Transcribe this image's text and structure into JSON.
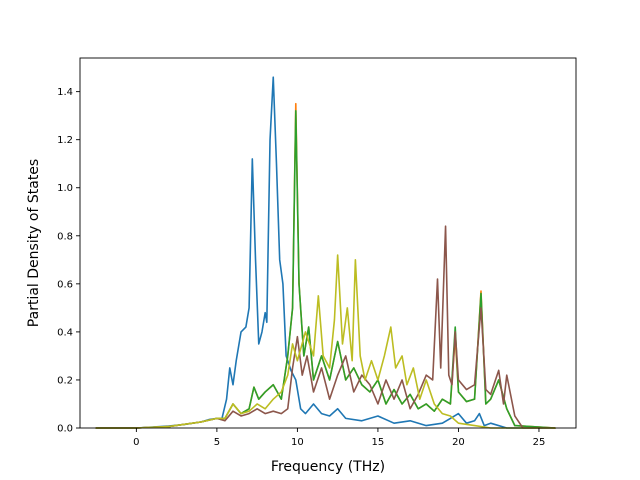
{
  "chart_data": {
    "type": "line",
    "title": "",
    "xlabel": "Frequency (THz)",
    "ylabel": "Partial Density of States",
    "xlim": [
      -3.5,
      27.3
    ],
    "ylim": [
      0,
      1.54
    ],
    "xticks": [
      0,
      5,
      10,
      15,
      20,
      25
    ],
    "yticks": [
      0.0,
      0.2,
      0.4,
      0.6,
      0.8,
      1.0,
      1.2,
      1.4
    ],
    "xtick_labels": [
      "0",
      "5",
      "10",
      "15",
      "20",
      "25"
    ],
    "ytick_labels": [
      "0.0",
      "0.2",
      "0.4",
      "0.6",
      "0.8",
      "1.0",
      "1.2",
      "1.4"
    ],
    "grid": false,
    "legend": "none",
    "series": [
      {
        "color": "#1f77b4",
        "points": [
          [
            -2.5,
            0
          ],
          [
            0,
            0
          ],
          [
            1,
            0.004
          ],
          [
            2,
            0.008
          ],
          [
            3,
            0.015
          ],
          [
            4,
            0.025
          ],
          [
            4.5,
            0.035
          ],
          [
            5,
            0.04
          ],
          [
            5.3,
            0.035
          ],
          [
            5.6,
            0.12
          ],
          [
            5.8,
            0.25
          ],
          [
            6.0,
            0.18
          ],
          [
            6.2,
            0.28
          ],
          [
            6.5,
            0.4
          ],
          [
            6.8,
            0.42
          ],
          [
            7.0,
            0.5
          ],
          [
            7.2,
            1.12
          ],
          [
            7.4,
            0.7
          ],
          [
            7.6,
            0.35
          ],
          [
            7.8,
            0.4
          ],
          [
            8.0,
            0.48
          ],
          [
            8.1,
            0.44
          ],
          [
            8.3,
            1.2
          ],
          [
            8.5,
            1.46
          ],
          [
            8.7,
            1.1
          ],
          [
            8.9,
            0.7
          ],
          [
            9.1,
            0.6
          ],
          [
            9.3,
            0.3
          ],
          [
            9.6,
            0.24
          ],
          [
            9.9,
            0.2
          ],
          [
            10.2,
            0.08
          ],
          [
            10.5,
            0.06
          ],
          [
            11,
            0.1
          ],
          [
            11.5,
            0.06
          ],
          [
            12,
            0.05
          ],
          [
            12.5,
            0.08
          ],
          [
            13,
            0.04
          ],
          [
            14,
            0.03
          ],
          [
            15,
            0.05
          ],
          [
            16,
            0.02
          ],
          [
            17,
            0.03
          ],
          [
            18,
            0.01
          ],
          [
            19,
            0.02
          ],
          [
            19.5,
            0.04
          ],
          [
            20,
            0.06
          ],
          [
            20.5,
            0.02
          ],
          [
            21,
            0.03
          ],
          [
            21.3,
            0.06
          ],
          [
            21.6,
            0.01
          ],
          [
            22,
            0.02
          ],
          [
            23,
            0
          ],
          [
            26,
            0
          ]
        ]
      },
      {
        "color": "#ff7f0e",
        "points": [
          [
            -2.5,
            0
          ],
          [
            0,
            0
          ],
          [
            2,
            0.006
          ],
          [
            4,
            0.025
          ],
          [
            5,
            0.04
          ],
          [
            5.5,
            0.04
          ],
          [
            6,
            0.1
          ],
          [
            6.5,
            0.06
          ],
          [
            7,
            0.08
          ],
          [
            7.3,
            0.17
          ],
          [
            7.6,
            0.12
          ],
          [
            8,
            0.15
          ],
          [
            8.5,
            0.18
          ],
          [
            9,
            0.12
          ],
          [
            9.4,
            0.3
          ],
          [
            9.7,
            0.5
          ],
          [
            9.9,
            1.35
          ],
          [
            10.1,
            0.6
          ],
          [
            10.4,
            0.3
          ],
          [
            10.7,
            0.42
          ],
          [
            11,
            0.2
          ],
          [
            11.5,
            0.3
          ],
          [
            12,
            0.2
          ],
          [
            12.5,
            0.36
          ],
          [
            13,
            0.2
          ],
          [
            13.5,
            0.25
          ],
          [
            14,
            0.18
          ],
          [
            14.5,
            0.15
          ],
          [
            15,
            0.2
          ],
          [
            15.5,
            0.1
          ],
          [
            16,
            0.16
          ],
          [
            16.5,
            0.1
          ],
          [
            17,
            0.14
          ],
          [
            17.5,
            0.08
          ],
          [
            18,
            0.1
          ],
          [
            18.5,
            0.07
          ],
          [
            19,
            0.12
          ],
          [
            19.5,
            0.1
          ],
          [
            19.8,
            0.38
          ],
          [
            20,
            0.15
          ],
          [
            20.5,
            0.11
          ],
          [
            21,
            0.12
          ],
          [
            21.4,
            0.57
          ],
          [
            21.7,
            0.1
          ],
          [
            22,
            0.12
          ],
          [
            22.5,
            0.2
          ],
          [
            23,
            0.08
          ],
          [
            23.5,
            0.01
          ],
          [
            26,
            0
          ]
        ]
      },
      {
        "color": "#2ca02c",
        "points": [
          [
            -2.5,
            0
          ],
          [
            0,
            0
          ],
          [
            2,
            0.006
          ],
          [
            4,
            0.025
          ],
          [
            5,
            0.04
          ],
          [
            5.5,
            0.04
          ],
          [
            6,
            0.1
          ],
          [
            6.5,
            0.06
          ],
          [
            7,
            0.08
          ],
          [
            7.3,
            0.17
          ],
          [
            7.6,
            0.12
          ],
          [
            8,
            0.15
          ],
          [
            8.5,
            0.18
          ],
          [
            9,
            0.12
          ],
          [
            9.4,
            0.3
          ],
          [
            9.7,
            0.5
          ],
          [
            9.9,
            1.32
          ],
          [
            10.1,
            0.6
          ],
          [
            10.4,
            0.3
          ],
          [
            10.7,
            0.42
          ],
          [
            11,
            0.2
          ],
          [
            11.5,
            0.3
          ],
          [
            12,
            0.2
          ],
          [
            12.5,
            0.36
          ],
          [
            13,
            0.2
          ],
          [
            13.5,
            0.25
          ],
          [
            14,
            0.18
          ],
          [
            14.5,
            0.15
          ],
          [
            15,
            0.2
          ],
          [
            15.5,
            0.1
          ],
          [
            16,
            0.16
          ],
          [
            16.5,
            0.1
          ],
          [
            17,
            0.14
          ],
          [
            17.5,
            0.08
          ],
          [
            18,
            0.1
          ],
          [
            18.5,
            0.07
          ],
          [
            19,
            0.12
          ],
          [
            19.5,
            0.1
          ],
          [
            19.8,
            0.42
          ],
          [
            20,
            0.15
          ],
          [
            20.5,
            0.11
          ],
          [
            21,
            0.12
          ],
          [
            21.4,
            0.56
          ],
          [
            21.7,
            0.1
          ],
          [
            22,
            0.12
          ],
          [
            22.5,
            0.2
          ],
          [
            23,
            0.08
          ],
          [
            23.5,
            0.01
          ],
          [
            26,
            0
          ]
        ]
      },
      {
        "color": "#8c564b",
        "points": [
          [
            -2.5,
            0
          ],
          [
            0,
            0
          ],
          [
            2,
            0.006
          ],
          [
            4,
            0.025
          ],
          [
            5,
            0.04
          ],
          [
            5.5,
            0.03
          ],
          [
            6,
            0.07
          ],
          [
            6.5,
            0.05
          ],
          [
            7,
            0.06
          ],
          [
            7.5,
            0.08
          ],
          [
            8,
            0.06
          ],
          [
            8.5,
            0.07
          ],
          [
            9,
            0.06
          ],
          [
            9.4,
            0.08
          ],
          [
            9.7,
            0.25
          ],
          [
            10,
            0.38
          ],
          [
            10.3,
            0.22
          ],
          [
            10.6,
            0.3
          ],
          [
            11,
            0.15
          ],
          [
            11.5,
            0.25
          ],
          [
            12,
            0.12
          ],
          [
            12.5,
            0.22
          ],
          [
            13,
            0.3
          ],
          [
            13.5,
            0.15
          ],
          [
            14,
            0.22
          ],
          [
            14.5,
            0.18
          ],
          [
            15,
            0.1
          ],
          [
            15.5,
            0.2
          ],
          [
            16,
            0.12
          ],
          [
            16.5,
            0.2
          ],
          [
            17,
            0.08
          ],
          [
            17.5,
            0.14
          ],
          [
            18,
            0.22
          ],
          [
            18.4,
            0.2
          ],
          [
            18.7,
            0.62
          ],
          [
            18.9,
            0.25
          ],
          [
            19.2,
            0.84
          ],
          [
            19.4,
            0.22
          ],
          [
            19.6,
            0.18
          ],
          [
            19.8,
            0.4
          ],
          [
            20,
            0.2
          ],
          [
            20.5,
            0.16
          ],
          [
            21,
            0.18
          ],
          [
            21.4,
            0.5
          ],
          [
            21.7,
            0.16
          ],
          [
            22,
            0.14
          ],
          [
            22.5,
            0.24
          ],
          [
            22.8,
            0.1
          ],
          [
            23,
            0.22
          ],
          [
            23.5,
            0.05
          ],
          [
            24,
            0
          ],
          [
            26,
            0
          ]
        ]
      },
      {
        "color": "#bcbd22",
        "points": [
          [
            -2.5,
            0
          ],
          [
            0,
            0
          ],
          [
            2,
            0.006
          ],
          [
            4,
            0.025
          ],
          [
            5,
            0.04
          ],
          [
            5.5,
            0.04
          ],
          [
            6,
            0.1
          ],
          [
            6.5,
            0.06
          ],
          [
            7,
            0.07
          ],
          [
            7.5,
            0.1
          ],
          [
            8,
            0.08
          ],
          [
            8.5,
            0.12
          ],
          [
            9,
            0.15
          ],
          [
            9.4,
            0.22
          ],
          [
            9.7,
            0.35
          ],
          [
            10,
            0.28
          ],
          [
            10.5,
            0.4
          ],
          [
            11,
            0.3
          ],
          [
            11.3,
            0.55
          ],
          [
            11.6,
            0.3
          ],
          [
            12,
            0.25
          ],
          [
            12.3,
            0.45
          ],
          [
            12.5,
            0.72
          ],
          [
            12.8,
            0.35
          ],
          [
            13.1,
            0.5
          ],
          [
            13.4,
            0.28
          ],
          [
            13.6,
            0.7
          ],
          [
            13.9,
            0.3
          ],
          [
            14.2,
            0.2
          ],
          [
            14.6,
            0.28
          ],
          [
            15,
            0.2
          ],
          [
            15.4,
            0.3
          ],
          [
            15.8,
            0.42
          ],
          [
            16.1,
            0.25
          ],
          [
            16.5,
            0.3
          ],
          [
            16.8,
            0.18
          ],
          [
            17.2,
            0.25
          ],
          [
            17.6,
            0.12
          ],
          [
            18,
            0.2
          ],
          [
            18.5,
            0.1
          ],
          [
            19,
            0.06
          ],
          [
            19.5,
            0.05
          ],
          [
            20,
            0.02
          ],
          [
            21,
            0.01
          ],
          [
            22,
            0
          ],
          [
            26,
            0
          ]
        ]
      }
    ]
  }
}
